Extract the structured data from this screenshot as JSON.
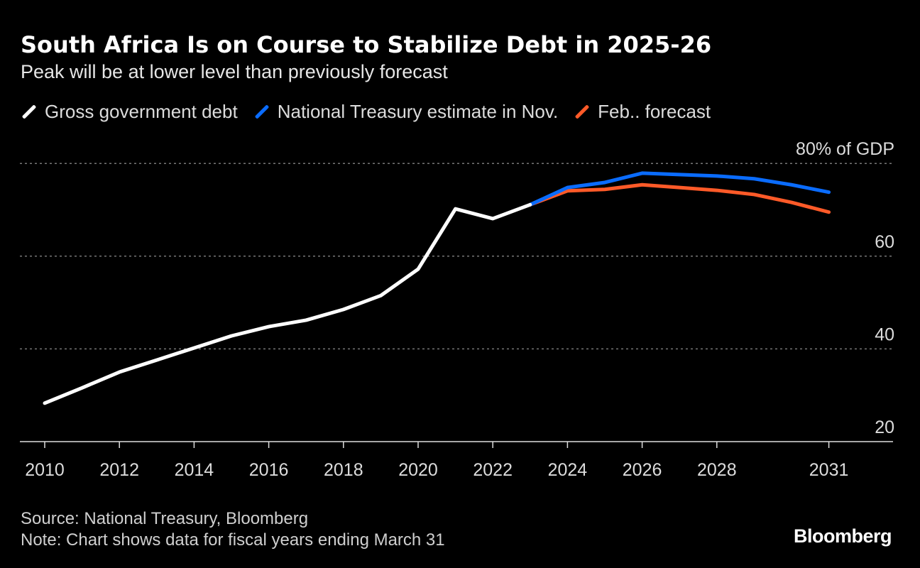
{
  "title": "South Africa Is on Course to Stabilize Debt in 2025-26",
  "subtitle": "Peak will be at lower level than previously forecast",
  "source": "Source: National Treasury, Bloomberg",
  "note": "Note: Chart shows data for fiscal years ending March 31",
  "logo": "Bloomberg",
  "chart_data": {
    "type": "line",
    "title": "South Africa Is on Course to Stabilize Debt in 2025-26",
    "subtitle": "Peak will be at lower level than previously forecast",
    "ylabel": "80% of GDP",
    "ylim": [
      20,
      80
    ],
    "xlim": [
      2010,
      2031
    ],
    "y_ticks": [
      "80% of GDP",
      "60",
      "40",
      "20"
    ],
    "y_tick_values": [
      80,
      60,
      40,
      20
    ],
    "x_ticks": [
      "2010",
      "2012",
      "2014",
      "2016",
      "2018",
      "2020",
      "2022",
      "2024",
      "2026",
      "2028",
      "2031"
    ],
    "x_tick_values": [
      2010,
      2012,
      2014,
      2016,
      2018,
      2020,
      2022,
      2024,
      2026,
      2028,
      2031
    ],
    "grid": true,
    "legend_position": "top-left",
    "series": [
      {
        "name": "Gross government debt",
        "color": "#ffffff",
        "x": [
          2010,
          2011,
          2012,
          2013,
          2014,
          2015,
          2016,
          2017,
          2018,
          2019,
          2020,
          2021,
          2022,
          2023
        ],
        "values": [
          28.3,
          31.6,
          35.0,
          37.6,
          40.2,
          42.8,
          44.8,
          46.2,
          48.5,
          51.5,
          57.2,
          70.2,
          68.1,
          71.1
        ]
      },
      {
        "name": "National Treasury estimate in Nov.",
        "color": "#0a6cff",
        "x": [
          2023,
          2024,
          2025,
          2026,
          2027,
          2028,
          2029,
          2030,
          2031
        ],
        "values": [
          71.1,
          74.8,
          75.9,
          77.9,
          77.6,
          77.3,
          76.7,
          75.4,
          73.8
        ]
      },
      {
        "name": "Feb.. forecast",
        "color": "#ff5a28",
        "x": [
          2023,
          2024,
          2025,
          2026,
          2027,
          2028,
          2029,
          2030,
          2031
        ],
        "values": [
          71.1,
          74.1,
          74.4,
          75.4,
          74.8,
          74.2,
          73.3,
          71.6,
          69.5
        ]
      }
    ]
  }
}
